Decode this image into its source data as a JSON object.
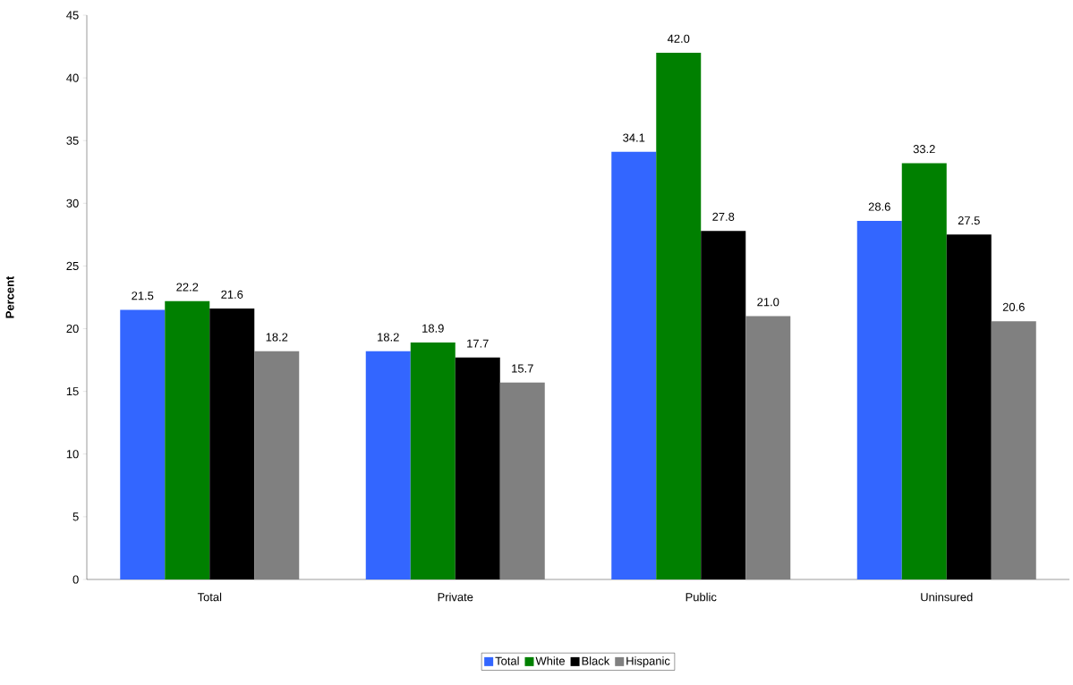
{
  "chart_data": {
    "type": "bar",
    "ylabel": "Percent",
    "categories": [
      "Total",
      "Private",
      "Public",
      "Uninsured"
    ],
    "series": [
      {
        "name": "Total",
        "color": "#3366ff",
        "values": [
          21.5,
          18.2,
          34.1,
          28.6
        ],
        "value_labels": [
          "21.5",
          "18.2",
          "34.1",
          "28.6"
        ]
      },
      {
        "name": "White",
        "color": "#008000",
        "values": [
          22.2,
          18.9,
          42.0,
          33.2
        ],
        "value_labels": [
          "22.2",
          "18.9",
          "42.0",
          "33.2"
        ]
      },
      {
        "name": "Black",
        "color": "#000000",
        "values": [
          21.6,
          17.7,
          27.8,
          27.5
        ],
        "value_labels": [
          "21.6",
          "17.7",
          "27.8",
          "27.5"
        ]
      },
      {
        "name": "Hispanic",
        "color": "#808080",
        "values": [
          18.2,
          15.7,
          21.0,
          20.6
        ],
        "value_labels": [
          "18.2",
          "15.7",
          "21.0",
          "20.6"
        ]
      }
    ],
    "ylim": [
      0,
      45
    ],
    "yticks": [
      0,
      5,
      10,
      15,
      20,
      25,
      30,
      35,
      40,
      45
    ],
    "legend": "bottom"
  }
}
